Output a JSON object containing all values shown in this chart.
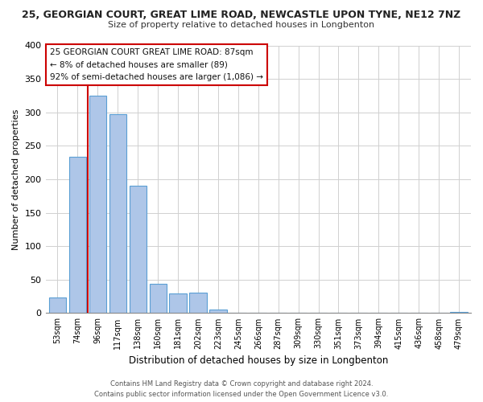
{
  "title_line1": "25, GEORGIAN COURT, GREAT LIME ROAD, NEWCASTLE UPON TYNE, NE12 7NZ",
  "title_line2": "Size of property relative to detached houses in Longbenton",
  "xlabel": "Distribution of detached houses by size in Longbenton",
  "ylabel": "Number of detached properties",
  "categories": [
    "53sqm",
    "74sqm",
    "96sqm",
    "117sqm",
    "138sqm",
    "160sqm",
    "181sqm",
    "202sqm",
    "223sqm",
    "245sqm",
    "266sqm",
    "287sqm",
    "309sqm",
    "330sqm",
    "351sqm",
    "373sqm",
    "394sqm",
    "415sqm",
    "436sqm",
    "458sqm",
    "479sqm"
  ],
  "values": [
    23,
    233,
    325,
    297,
    190,
    44,
    29,
    30,
    5,
    1,
    1,
    0,
    0,
    0,
    0,
    1,
    0,
    0,
    0,
    0,
    2
  ],
  "bar_color": "#aec6e8",
  "bar_edge_color": "#5a9fd4",
  "marker_color": "#cc0000",
  "ylim": [
    0,
    400
  ],
  "yticks": [
    0,
    50,
    100,
    150,
    200,
    250,
    300,
    350,
    400
  ],
  "annotation_line1": "25 GEORGIAN COURT GREAT LIME ROAD: 87sqm",
  "annotation_line2": "← 8% of detached houses are smaller (89)",
  "annotation_line3": "92% of semi-detached houses are larger (1,086) →",
  "footer_line1": "Contains HM Land Registry data © Crown copyright and database right 2024.",
  "footer_line2": "Contains public sector information licensed under the Open Government Licence v3.0.",
  "background_color": "#ffffff",
  "grid_color": "#d0d0d0"
}
